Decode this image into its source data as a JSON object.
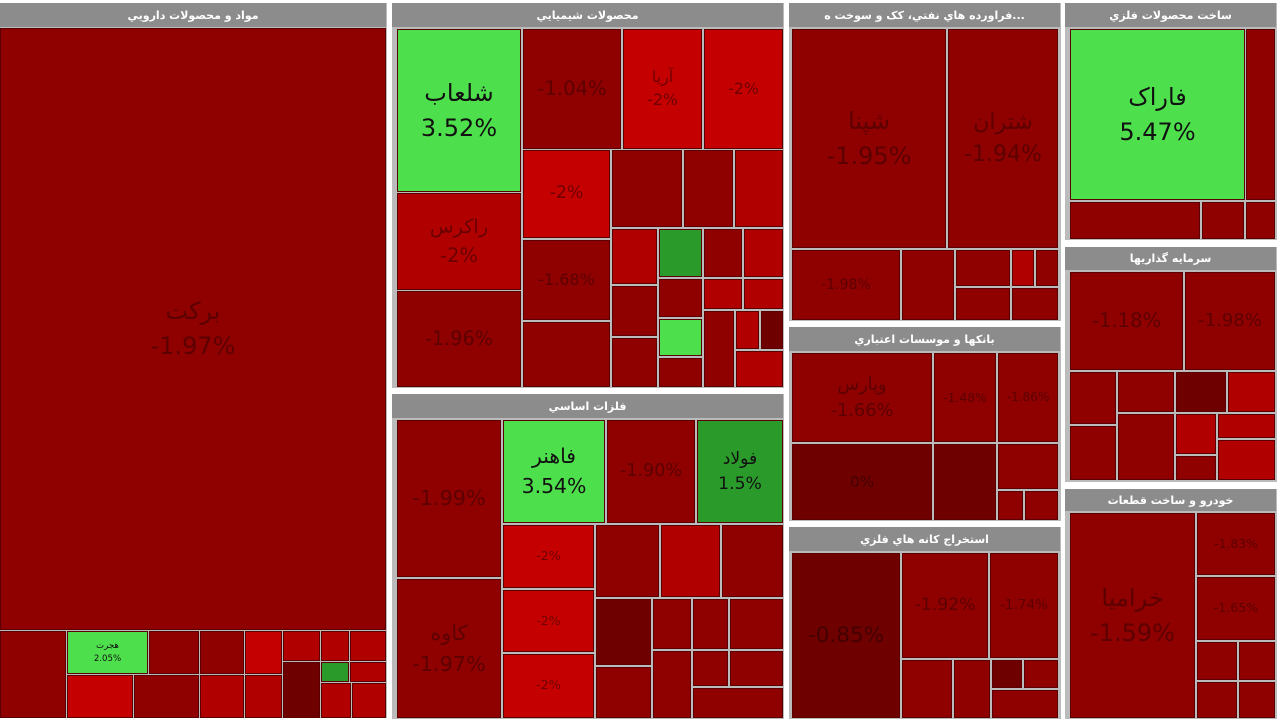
{
  "panels": [
    {
      "title": "مواد و محصولات دارويي",
      "tiles": [
        {
          "name": "برکت",
          "change": "-1.97%"
        },
        {
          "name": "هجرت",
          "change": "2.05%"
        }
      ]
    },
    {
      "title": "محصولات شيميايي",
      "tiles": [
        {
          "name": "شلعاب",
          "change": "3.52%"
        },
        {
          "name": "راکرس",
          "change": "-2%"
        },
        {
          "change": "-1.96%"
        },
        {
          "change": "-1.04%"
        },
        {
          "name": "آريا",
          "change": "-2%"
        },
        {
          "change": "-2%"
        },
        {
          "change": "-2%"
        },
        {
          "change": "-1.68%"
        }
      ]
    },
    {
      "title": "...فراورده هاي نفتي، کک و سوخت ه",
      "tiles": [
        {
          "name": "شپنا",
          "change": "-1.95%"
        },
        {
          "name": "شتران",
          "change": "-1.94%"
        },
        {
          "change": "-1.98%"
        }
      ]
    },
    {
      "title": "ساخت محصولات فلزي",
      "tiles": [
        {
          "name": "فاراک",
          "change": "5.47%"
        }
      ]
    },
    {
      "title": "سرمايه گذاريها",
      "tiles": [
        {
          "change": "-1.18%"
        },
        {
          "change": "-1.98%"
        }
      ]
    },
    {
      "title": "خودرو و ساخت قطعات",
      "tiles": [
        {
          "name": "خراميا",
          "change": "-1.59%"
        },
        {
          "change": "-1.83%"
        },
        {
          "change": "-1.65%"
        }
      ]
    },
    {
      "title": "بانکها و موسسات اعتباري",
      "tiles": [
        {
          "name": "وپارس",
          "change": "-1.66%"
        },
        {
          "change": "-1.48%"
        },
        {
          "change": "-1.86%"
        },
        {
          "change": "0%"
        }
      ]
    },
    {
      "title": "استخراج کانه هاي فلزي",
      "tiles": [
        {
          "change": "-0.85%"
        },
        {
          "change": "-1.92%"
        },
        {
          "change": "-1.74%"
        }
      ]
    },
    {
      "title": "فلزات اساسي",
      "tiles": [
        {
          "change": "-1.99%"
        },
        {
          "name": "کاوه",
          "change": "-1.97%"
        },
        {
          "name": "فاهنر",
          "change": "3.54%"
        },
        {
          "change": "-1.90%"
        },
        {
          "name": "فولاد",
          "change": "1.5%"
        },
        {
          "change": "-2%"
        },
        {
          "change": "-2%"
        },
        {
          "change": "-2%"
        }
      ]
    }
  ]
}
